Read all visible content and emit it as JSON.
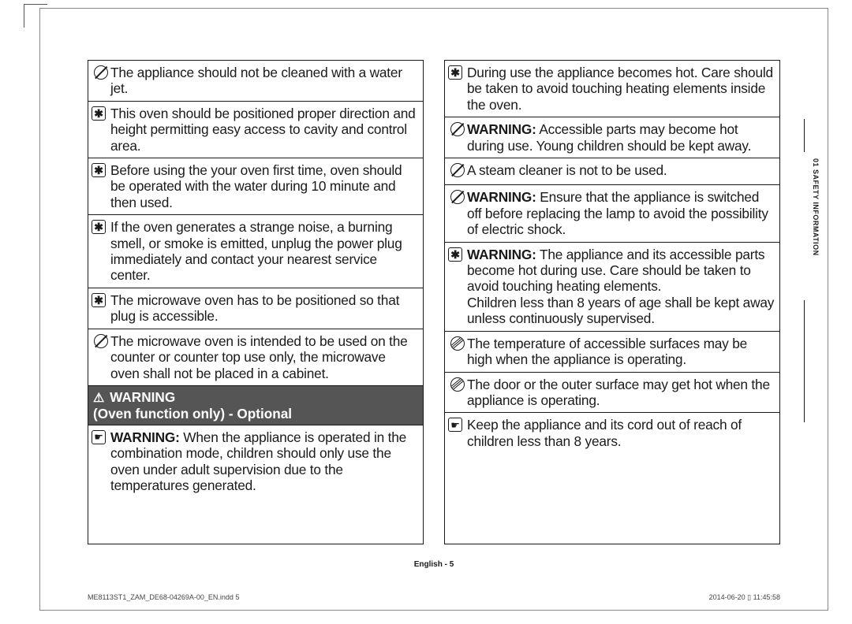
{
  "warning_title_line1": "WARNING",
  "warning_title_line2": "(Oven function only) - Optional",
  "side_tab": "01 SAFETY INFORMATION",
  "page_label": "English - 5",
  "footer_left": "ME8113ST1_ZAM_DE68-04269A-00_EN.indd   5",
  "footer_right": "2014-06-20   ▯ 11:45:58",
  "col1": [
    {
      "icon": "prohibit",
      "text": "The appliance should not be cleaned with a water jet."
    },
    {
      "icon": "star",
      "text": "This oven should be positioned proper direction and height permitting easy access to cavity and control area."
    },
    {
      "icon": "star",
      "text": "Before using the your oven first time, oven should be operated with the water during 10 minute and then used."
    },
    {
      "icon": "star",
      "text": "If the oven generates a strange noise, a burning smell, or smoke is emitted, unplug the power plug immediately and contact your nearest service center."
    },
    {
      "icon": "star",
      "text": "The microwave oven has to be positioned so that plug is accessible."
    },
    {
      "icon": "prohibit",
      "text": "The microwave oven is intended to be used on the counter or counter top use only, the microwave oven shall not be placed in a cabinet."
    }
  ],
  "col1_after": [
    {
      "icon": "hand",
      "bold": "WARNING:",
      "text": " When the appliance is operated in the combination mode, children should only use the oven under adult supervision due to the temperatures generated."
    }
  ],
  "col2": [
    {
      "icon": "star",
      "text": "During use the appliance becomes hot. Care should be taken to avoid touching heating elements inside the oven."
    },
    {
      "icon": "prohibit",
      "bold": "WARNING:",
      "text": " Accessible parts may become hot during use. Young children should be kept away."
    },
    {
      "icon": "prohibit",
      "text": "A steam cleaner is not to be used."
    },
    {
      "icon": "prohibit",
      "bold": "WARNING:",
      "text": " Ensure that the appliance is switched off before replacing the lamp to avoid the possibility of electric shock."
    },
    {
      "icon": "star",
      "bold": "WARNING:",
      "text": " The appliance and its accessible parts become hot during use. Care should be taken to avoid touching heating elements.",
      "text2": "Children less than 8 years of age shall be kept away unless continuously supervised."
    },
    {
      "icon": "hot",
      "text": "The temperature of accessible surfaces may be high when the appliance is operating."
    },
    {
      "icon": "hot",
      "text": "The door or the outer surface may get hot when the appliance is operating."
    },
    {
      "icon": "hand",
      "text": "Keep the appliance and its cord out of reach of children less than 8 years."
    }
  ]
}
